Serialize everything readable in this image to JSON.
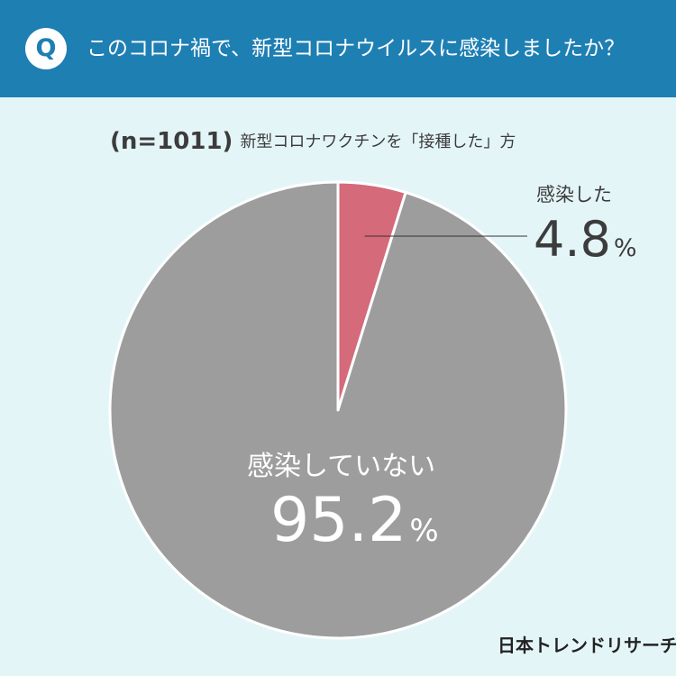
{
  "header": {
    "badge": "Q",
    "question": "このコロナ禍で、新型コロナウイルスに感染しましたか？"
  },
  "sample": {
    "n_label": "(n=1011)",
    "description": "新型コロナワクチンを「接種した」方"
  },
  "chart_data": {
    "type": "pie",
    "title": "",
    "slices": [
      {
        "label": "感染した",
        "value": 4.8,
        "value_text": "4.8",
        "unit": "%",
        "color": "#d46a7a"
      },
      {
        "label": "感染していない",
        "value": 95.2,
        "value_text": "95.2",
        "unit": "%",
        "color": "#9d9d9d"
      }
    ]
  },
  "brand": "日本トレンドリサーチ",
  "colors": {
    "header_bg": "#1e7fb3",
    "page_bg": "#e4f5f8",
    "infected": "#d46a7a",
    "not_infected": "#9d9d9d"
  }
}
